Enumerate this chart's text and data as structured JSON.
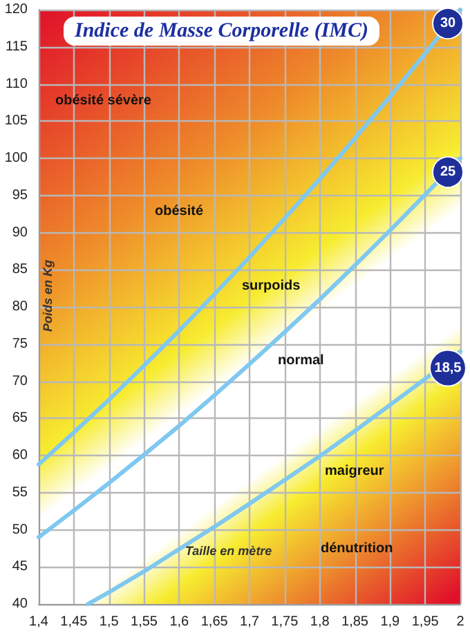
{
  "chart_data": {
    "type": "line",
    "title": "Indice de Masse Corporelle (IMC)",
    "xlabel": "Taille en mètre",
    "ylabel": "Poids en Kg",
    "x": [
      1.4,
      1.45,
      1.5,
      1.55,
      1.6,
      1.65,
      1.7,
      1.75,
      1.8,
      1.85,
      1.9,
      1.95,
      2
    ],
    "series": [
      {
        "name": "30",
        "color": "#7fc8f0",
        "values": [
          58.8,
          63.1,
          67.5,
          72.1,
          76.8,
          81.7,
          86.7,
          91.9,
          97.2,
          102.7,
          108.3,
          114.1,
          120
        ]
      },
      {
        "name": "25",
        "color": "#7fc8f0",
        "values": [
          49,
          52.6,
          56.3,
          60.1,
          64,
          68.1,
          72.3,
          76.6,
          81,
          85.6,
          90.3,
          95.1,
          100
        ]
      },
      {
        "name": "18,5",
        "color": "#7fc8f0",
        "x": [
          1.47,
          1.5,
          1.55,
          1.6,
          1.65,
          1.7,
          1.75,
          1.8,
          1.85,
          1.9,
          1.95,
          2
        ],
        "values": [
          40,
          41.6,
          44.4,
          47.4,
          50.4,
          53.5,
          56.7,
          59.9,
          63.3,
          66.8,
          70.3,
          74
        ]
      }
    ],
    "annotations": [
      "obésité sévère",
      "obésité",
      "surpoids",
      "normal",
      "maigreur",
      "dénutrition"
    ],
    "xlim": [
      1.4,
      2
    ],
    "xticks": [
      {
        "value": 1.4,
        "label": "1,4"
      },
      {
        "value": 1.45,
        "label": "1,45"
      },
      {
        "value": 1.5,
        "label": "1,5"
      },
      {
        "value": 1.55,
        "label": "1,55"
      },
      {
        "value": 1.6,
        "label": "1,6"
      },
      {
        "value": 1.65,
        "label": "1,65"
      },
      {
        "value": 1.7,
        "label": "1,7"
      },
      {
        "value": 1.75,
        "label": "1,75"
      },
      {
        "value": 1.8,
        "label": "1,8"
      },
      {
        "value": 1.85,
        "label": "1,85"
      },
      {
        "value": 1.9,
        "label": "1,9"
      },
      {
        "value": 1.95,
        "label": "1,95"
      },
      {
        "value": 2,
        "label": "2"
      }
    ],
    "ylim": [
      40,
      120
    ],
    "yticks": [
      40,
      45,
      50,
      55,
      60,
      65,
      70,
      75,
      80,
      85,
      90,
      95,
      100,
      105,
      110,
      115,
      120
    ],
    "grid": true,
    "legend": false,
    "marker": "none",
    "line_style": "solid"
  }
}
